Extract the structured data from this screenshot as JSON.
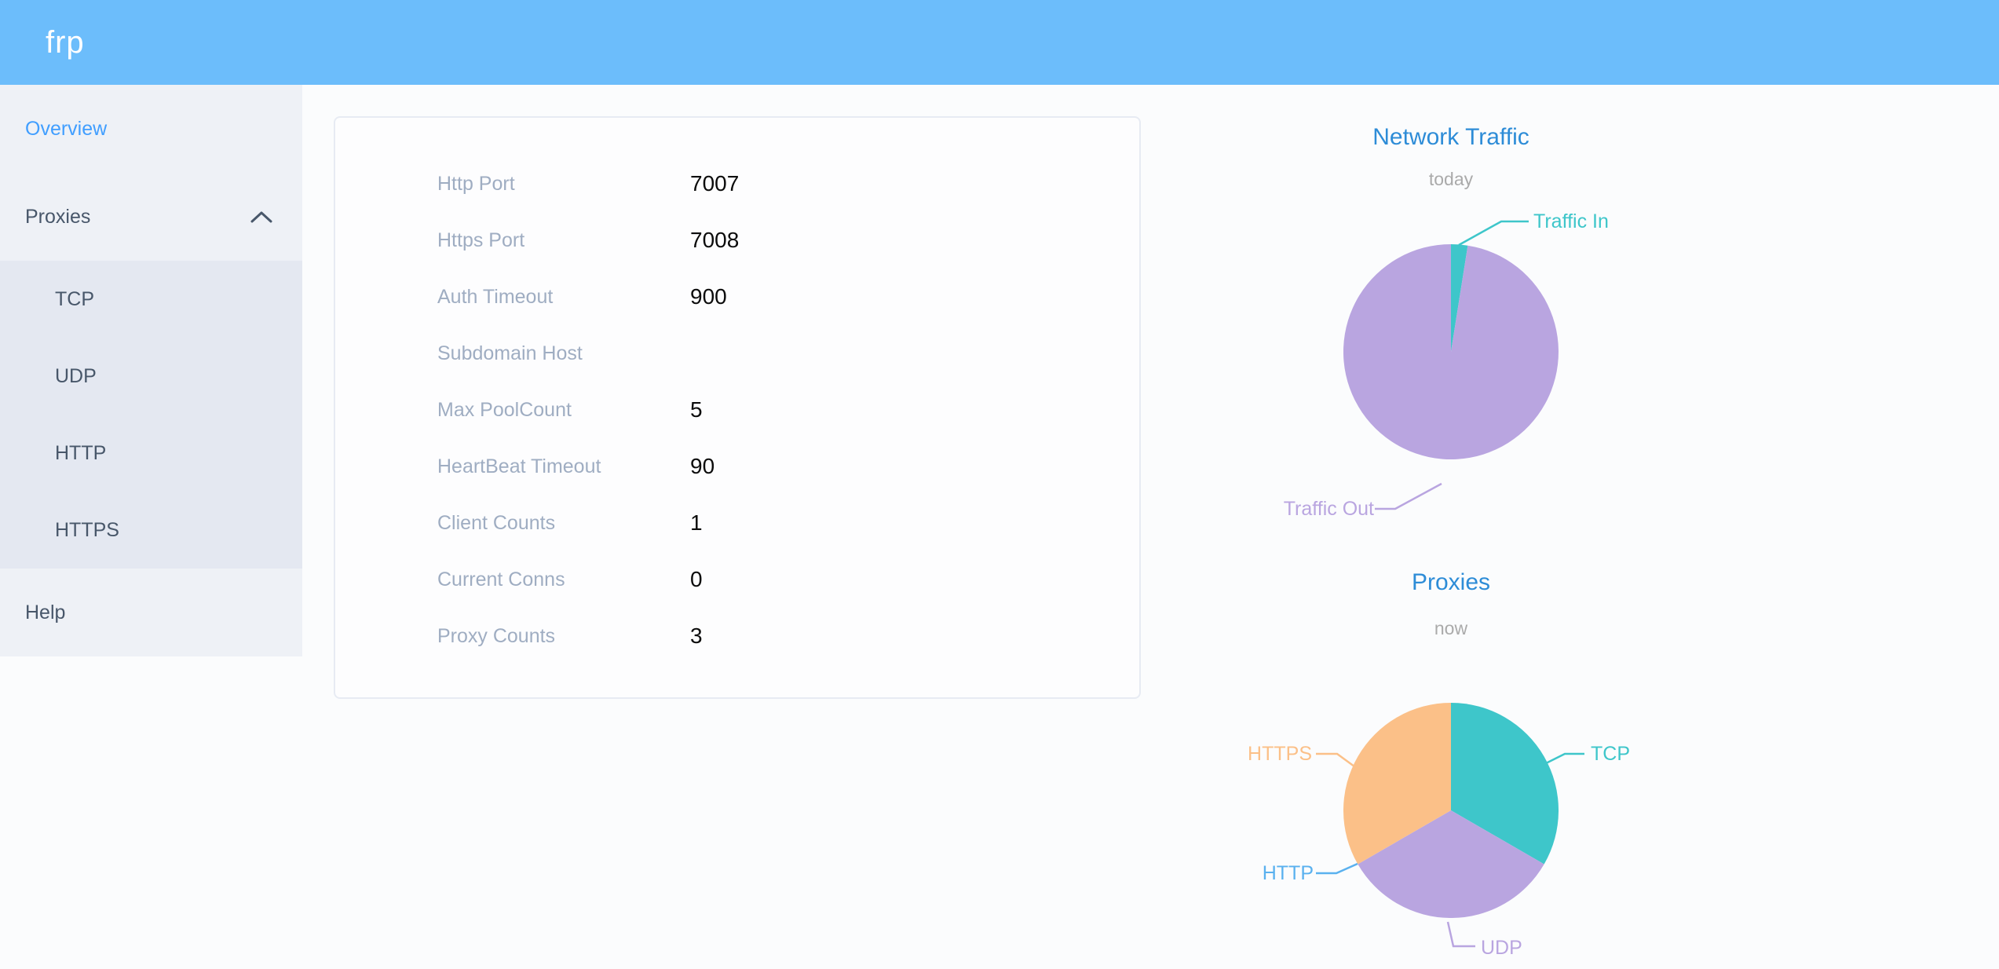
{
  "header": {
    "logo_text": "frp"
  },
  "sidebar": {
    "overview_label": "Overview",
    "proxies_label": "Proxies",
    "help_label": "Help",
    "active_item": "Overview",
    "proxies_expanded": true,
    "submenu": [
      {
        "label": "TCP"
      },
      {
        "label": "UDP"
      },
      {
        "label": "HTTP"
      },
      {
        "label": "HTTPS"
      }
    ]
  },
  "server_config": {
    "rows": [
      {
        "label": "Http Port",
        "value": "7007"
      },
      {
        "label": "Https Port",
        "value": "7008"
      },
      {
        "label": "Auth Timeout",
        "value": "900"
      },
      {
        "label": "Subdomain Host",
        "value": ""
      },
      {
        "label": "Max PoolCount",
        "value": "5"
      },
      {
        "label": "HeartBeat Timeout",
        "value": "90"
      },
      {
        "label": "Client Counts",
        "value": "1"
      },
      {
        "label": "Current Conns",
        "value": "0"
      },
      {
        "label": "Proxy Counts",
        "value": "3"
      }
    ]
  },
  "chart_data": [
    {
      "type": "pie",
      "title": "Network Traffic",
      "subtitle": "today",
      "legend_position": "callout-labels",
      "values_unit": "percent of today's traffic, estimated from slice angles",
      "series": [
        {
          "name": "Traffic In",
          "value": 2.5,
          "color": "#3ec6ca"
        },
        {
          "name": "Traffic Out",
          "value": 97.5,
          "color": "#b9a5e0"
        }
      ]
    },
    {
      "type": "pie",
      "title": "Proxies",
      "subtitle": "now",
      "legend_position": "callout-labels",
      "values_unit": "proxy count (Proxy Counts total = 3)",
      "series": [
        {
          "name": "TCP",
          "value": 1,
          "color": "#3ec6ca"
        },
        {
          "name": "UDP",
          "value": 1,
          "color": "#b9a5e0"
        },
        {
          "name": "HTTP",
          "value": 0,
          "color": "#5ab1ef"
        },
        {
          "name": "HTTPS",
          "value": 1,
          "color": "#fbc088"
        }
      ]
    }
  ],
  "colors": {
    "header_bg": "#6cbdfb",
    "sidebar_bg": "#eef1f6",
    "submenu_bg": "#e4e8f1",
    "active_link": "#409eff",
    "menu_text": "#48576a",
    "config_label": "#9fadc2",
    "chart_title": "#2d8cd7",
    "chart_subtitle": "#aaaaaa"
  }
}
